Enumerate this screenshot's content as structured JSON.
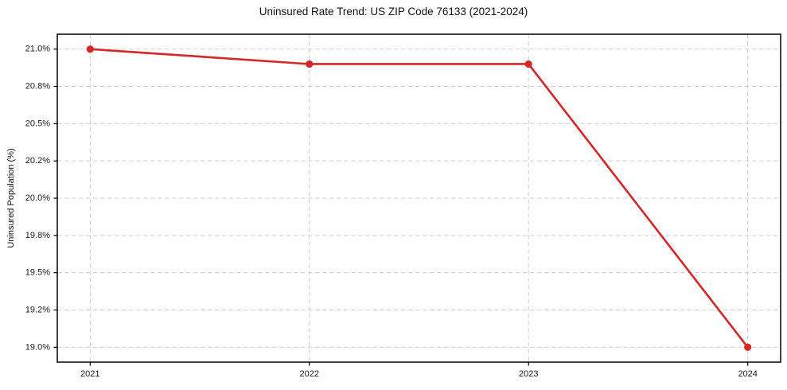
{
  "chart_data": {
    "type": "line",
    "title": "Uninsured Rate Trend: US ZIP Code 76133 (2021-2024)",
    "xlabel": "",
    "ylabel": "Uninsured Population (%)",
    "x": [
      2021,
      2022,
      2023,
      2024
    ],
    "values": [
      21.0,
      20.9,
      20.9,
      19.0
    ],
    "xticks": {
      "values": [
        2021,
        2022,
        2023,
        2024
      ],
      "labels": [
        "2021",
        "2022",
        "2023",
        "2024"
      ]
    },
    "yticks": {
      "values": [
        19.0,
        19.25,
        19.5,
        19.75,
        20.0,
        20.25,
        20.5,
        20.75,
        21.0
      ],
      "labels": [
        "19.0%",
        "19.2%",
        "19.5%",
        "19.8%",
        "20.0%",
        "20.2%",
        "20.5%",
        "20.8%",
        "21.0%"
      ]
    },
    "xlim": [
      2020.85,
      2024.15
    ],
    "ylim": [
      18.9,
      21.1
    ],
    "grid": true,
    "grid_style": "dashed",
    "legend_position": "none",
    "line_color": "#d62728",
    "marker": "circle",
    "grid_color": "#cfcfcf",
    "spine_color": "#000000",
    "background_color": "#ffffff"
  }
}
